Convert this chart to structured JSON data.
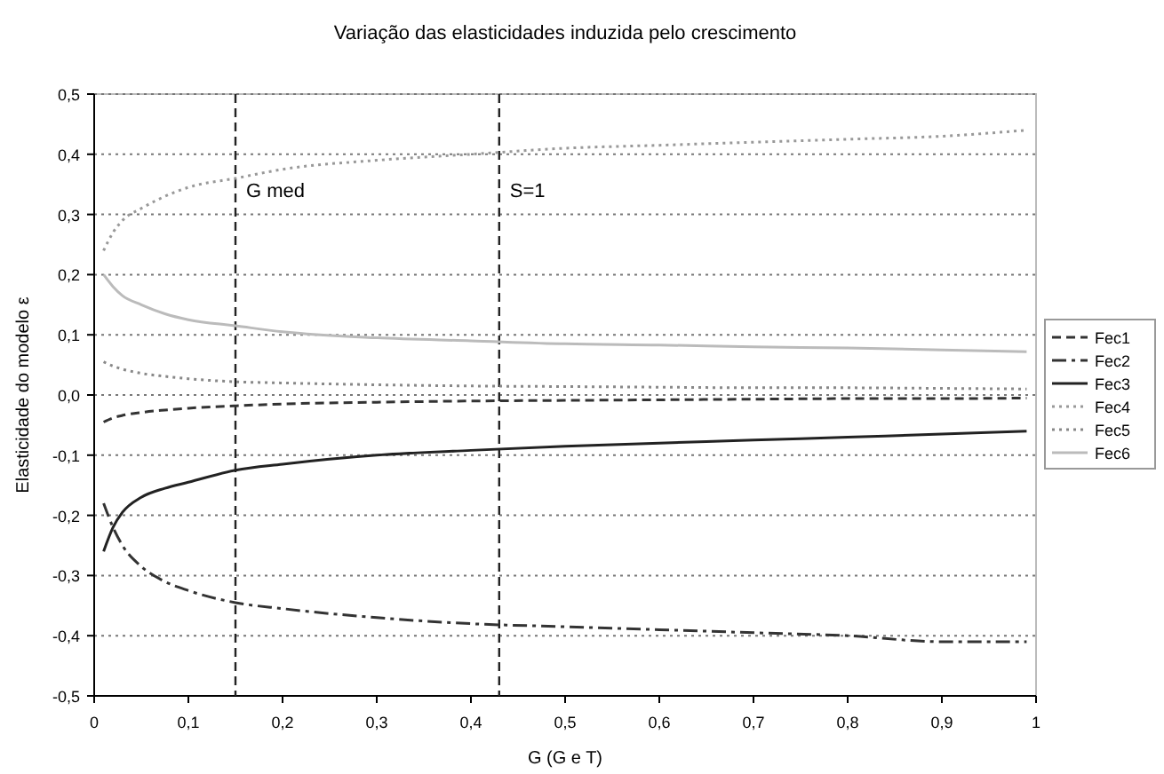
{
  "chart_data": {
    "type": "line",
    "title": "Variação das elasticidades induzida pelo crescimento",
    "xlabel": "G (G e T)",
    "ylabel": "Elasticidade do modelo ε",
    "x": [
      0.01,
      0.02,
      0.03,
      0.05,
      0.075,
      0.1,
      0.15,
      0.2,
      0.3,
      0.4,
      0.5,
      0.6,
      0.7,
      0.8,
      0.9,
      0.99
    ],
    "series": [
      {
        "name": "Fec1",
        "color": "#333333",
        "line_style": "dashed",
        "values": [
          -0.045,
          -0.038,
          -0.034,
          -0.029,
          -0.025,
          -0.022,
          -0.018,
          -0.015,
          -0.012,
          -0.01,
          -0.009,
          -0.008,
          -0.007,
          -0.006,
          -0.006,
          -0.005
        ]
      },
      {
        "name": "Fec2",
        "color": "#333333",
        "line_style": "dashdot",
        "values": [
          -0.18,
          -0.22,
          -0.25,
          -0.285,
          -0.31,
          -0.325,
          -0.345,
          -0.355,
          -0.37,
          -0.38,
          -0.385,
          -0.39,
          -0.395,
          -0.4,
          -0.41,
          -0.41
        ]
      },
      {
        "name": "Fec3",
        "color": "#222222",
        "line_style": "solid",
        "values": [
          -0.26,
          -0.22,
          -0.195,
          -0.17,
          -0.155,
          -0.145,
          -0.125,
          -0.115,
          -0.1,
          -0.092,
          -0.085,
          -0.08,
          -0.075,
          -0.07,
          -0.065,
          -0.06
        ]
      },
      {
        "name": "Fec4",
        "color": "#999999",
        "line_style": "dotted",
        "values": [
          0.24,
          0.27,
          0.29,
          0.31,
          0.33,
          0.345,
          0.36,
          0.375,
          0.39,
          0.4,
          0.41,
          0.415,
          0.42,
          0.425,
          0.43,
          0.44
        ]
      },
      {
        "name": "Fec5",
        "color": "#888888",
        "line_style": "dotted",
        "values": [
          0.055,
          0.048,
          0.043,
          0.036,
          0.031,
          0.027,
          0.022,
          0.02,
          0.017,
          0.015,
          0.014,
          0.013,
          0.012,
          0.012,
          0.011,
          0.01
        ]
      },
      {
        "name": "Fec6",
        "color": "#bbbbbb",
        "line_style": "solid",
        "values": [
          0.2,
          0.18,
          0.165,
          0.15,
          0.135,
          0.125,
          0.115,
          0.105,
          0.095,
          0.09,
          0.085,
          0.083,
          0.08,
          0.078,
          0.075,
          0.072
        ]
      }
    ],
    "xlim": [
      0,
      1
    ],
    "xticks": [
      0,
      {
        "value": 0.1,
        "label": "0,1"
      },
      {
        "value": 0.2,
        "label": "0,2"
      },
      {
        "value": 0.3,
        "label": "0,3"
      },
      {
        "value": 0.4,
        "label": "0,4"
      },
      {
        "value": 0.5,
        "label": "0,5"
      },
      {
        "value": 0.6,
        "label": "0,6"
      },
      {
        "value": 0.7,
        "label": "0,7"
      },
      {
        "value": 0.8,
        "label": "0,8"
      },
      {
        "value": 0.9,
        "label": "0,9"
      },
      1
    ],
    "ylim": [
      -0.5,
      0.5
    ],
    "yticks": [
      {
        "value": -0.5,
        "label": "-0,5"
      },
      {
        "value": -0.4,
        "label": "-0,4"
      },
      {
        "value": -0.3,
        "label": "-0,3"
      },
      {
        "value": -0.2,
        "label": "-0,2"
      },
      {
        "value": -0.1,
        "label": "-0,1"
      },
      {
        "value": 0,
        "label": "0,0"
      },
      {
        "value": 0.1,
        "label": "0,1"
      },
      {
        "value": 0.2,
        "label": "0,2"
      },
      {
        "value": 0.3,
        "label": "0,3"
      },
      {
        "value": 0.4,
        "label": "0,4"
      },
      {
        "value": 0.5,
        "label": "0,5"
      }
    ],
    "ref_lines": [
      {
        "axis": "x",
        "value": 0.15,
        "label": "G med",
        "color": "#222222",
        "line_style": "dashed"
      },
      {
        "axis": "x",
        "value": 0.43,
        "color": "#222222",
        "line_style": "dashed"
      }
    ],
    "annotations": [
      {
        "text": "S=1",
        "x": 0.43,
        "y": 0.3
      }
    ],
    "grid": "y",
    "legend": "right",
    "marker": "none"
  }
}
